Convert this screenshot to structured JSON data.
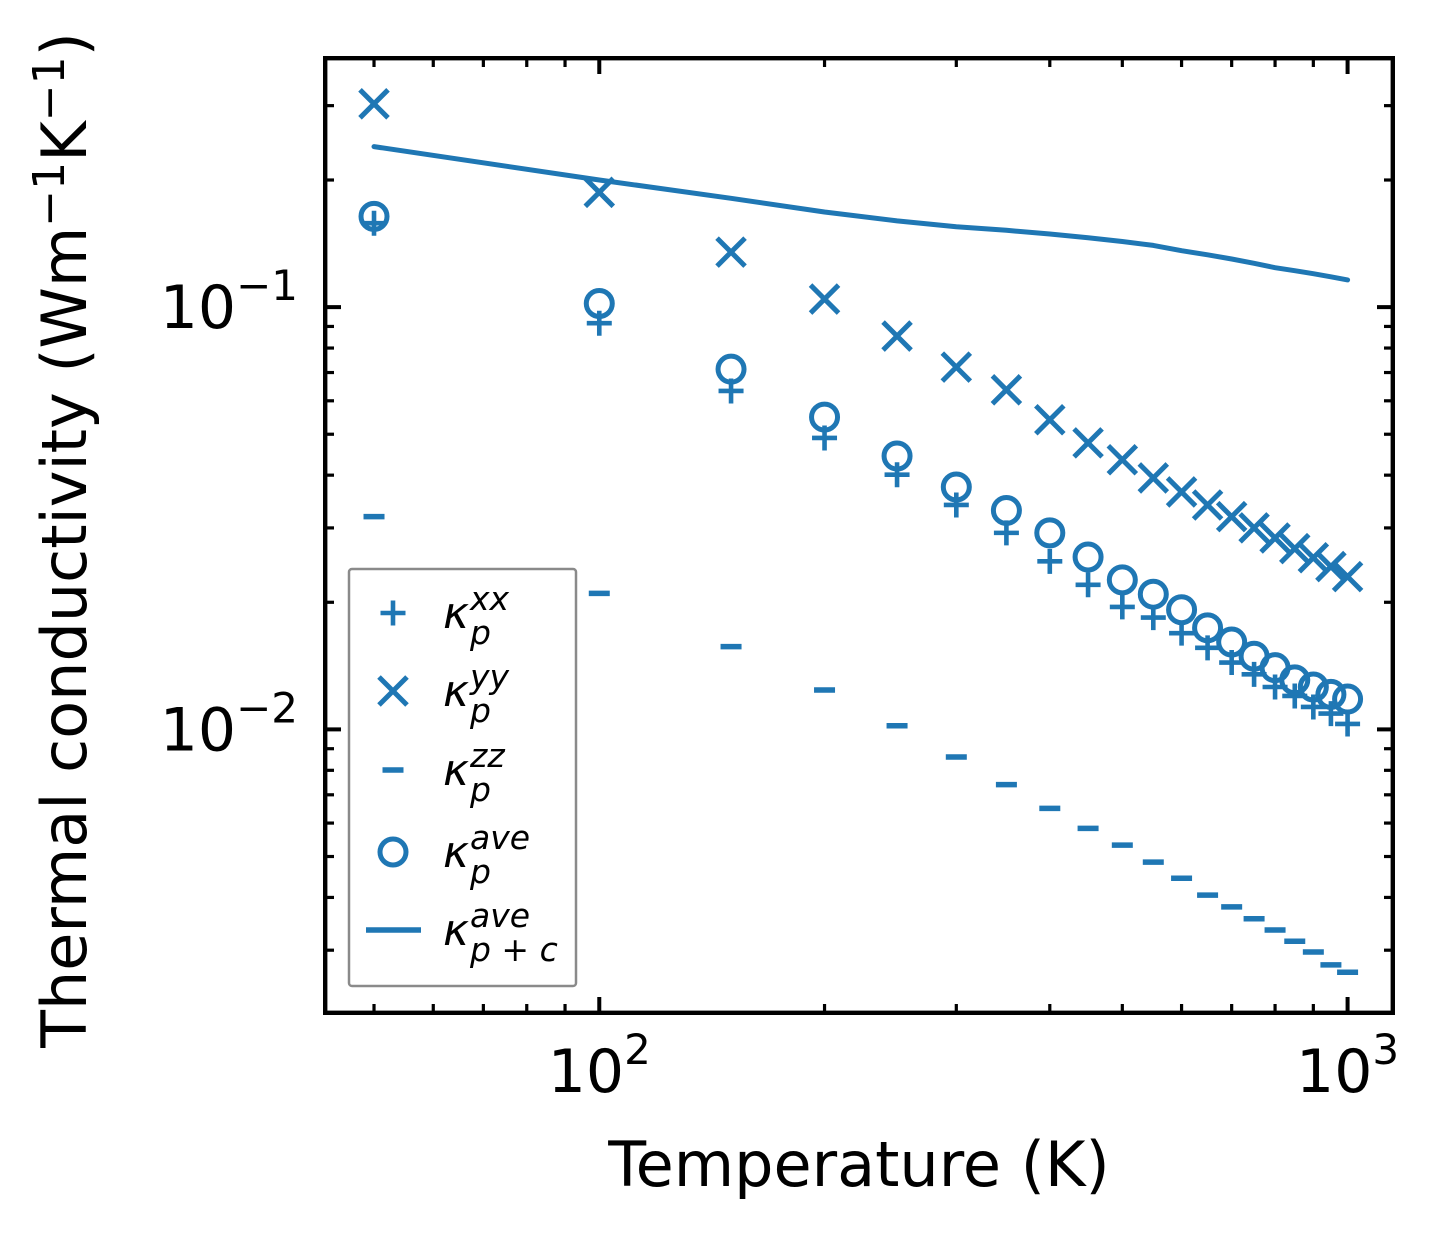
{
  "figure": {
    "background": "#ffffff",
    "axis_color": "#000000",
    "legend_border_color": "#8a8a8a",
    "legend_background": "#ffffff"
  },
  "chart_data": {
    "type": "scatter",
    "x_scale": "log",
    "y_scale": "log",
    "xlabel": "Temperature (K)",
    "ylabel": "Thermal conductivity (Wm⁻¹K⁻¹)",
    "ylabel_parts": [
      {
        "text": "Thermal conductivity (Wm",
        "sup": false
      },
      {
        "text": "−1",
        "sup": true
      },
      {
        "text": "K",
        "sup": false
      },
      {
        "text": "−1",
        "sup": true
      },
      {
        "text": ")",
        "sup": false
      }
    ],
    "xlim": [
      43,
      1150
    ],
    "ylim": [
      0.00213,
      0.389
    ],
    "grid": false,
    "legend_position": "lower-left-inside",
    "marker_color": "#1f77b4",
    "x_major_ticks": [
      {
        "value": 100,
        "mantissa": "10",
        "exponent": "2"
      },
      {
        "value": 1000,
        "mantissa": "10",
        "exponent": "3"
      }
    ],
    "y_major_ticks": [
      {
        "value": 0.1,
        "mantissa": "10",
        "exponent": "−1"
      },
      {
        "value": 0.01,
        "mantissa": "10",
        "exponent": "−2"
      }
    ],
    "x": [
      50,
      100,
      150,
      200,
      250,
      300,
      350,
      400,
      450,
      500,
      550,
      600,
      650,
      700,
      750,
      800,
      850,
      900,
      950,
      1000
    ],
    "series": [
      {
        "id": "kappa-p-xx",
        "label_plain": "κ_p^xx",
        "label": {
          "base": "κ",
          "sub": "p",
          "sup": "xx"
        },
        "marker": "plus",
        "values": [
          0.158,
          0.0916,
          0.0633,
          0.049,
          0.0401,
          0.034,
          0.0292,
          0.025,
          0.022,
          0.0195,
          0.0184,
          0.0169,
          0.0156,
          0.0144,
          0.0135,
          0.0126,
          0.012,
          0.0113,
          0.0109,
          0.0103
        ]
      },
      {
        "id": "kappa-p-yy",
        "label_plain": "κ_p^yy",
        "label": {
          "base": "κ",
          "sub": "p",
          "sup": "yy"
        },
        "marker": "x",
        "values": [
          0.303,
          0.187,
          0.135,
          0.1045,
          0.0854,
          0.0721,
          0.0637,
          0.0541,
          0.0477,
          0.0435,
          0.0394,
          0.0365,
          0.034,
          0.0319,
          0.03,
          0.0284,
          0.0268,
          0.0255,
          0.0243,
          0.023
        ]
      },
      {
        "id": "kappa-p-zz",
        "label_plain": "κ_p^zz",
        "label": {
          "base": "κ",
          "sub": "p",
          "sup": "zz"
        },
        "marker": "hline",
        "values": [
          0.0319,
          0.021,
          0.0157,
          0.0124,
          0.0102,
          0.0086,
          0.0074,
          0.0065,
          0.00583,
          0.00532,
          0.00485,
          0.00444,
          0.00405,
          0.0038,
          0.00356,
          0.00335,
          0.00315,
          0.00297,
          0.00277,
          0.00266
        ]
      },
      {
        "id": "kappa-p-ave",
        "label_plain": "κ_p^ave",
        "label": {
          "base": "κ",
          "sub": "p",
          "sup": "ave"
        },
        "marker": "circle",
        "values": [
          0.164,
          0.102,
          0.0713,
          0.0549,
          0.0444,
          0.0375,
          0.033,
          0.0292,
          0.0256,
          0.0226,
          0.0209,
          0.0192,
          0.0174,
          0.0161,
          0.0149,
          0.014,
          0.0131,
          0.0126,
          0.0121,
          0.0118
        ]
      },
      {
        "id": "kappa-p-plus-c-ave",
        "label_plain": "κ_p+c^ave",
        "label": {
          "base": "κ",
          "sub": "p + c",
          "sup": "ave"
        },
        "marker": "line",
        "values": [
          0.24,
          0.2,
          0.181,
          0.168,
          0.16,
          0.155,
          0.152,
          0.149,
          0.146,
          0.143,
          0.14,
          0.136,
          0.133,
          0.13,
          0.127,
          0.124,
          0.122,
          0.12,
          0.118,
          0.116
        ]
      }
    ]
  }
}
